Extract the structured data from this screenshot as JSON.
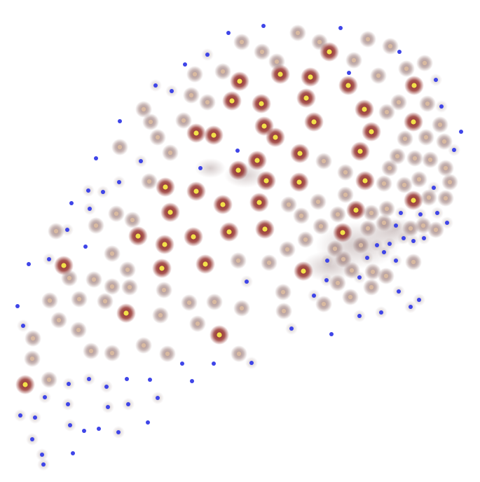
{
  "image": {
    "description_hidden": "",
    "colors": {
      "background": "#ffffff",
      "halo_dark": "#8a1f1a",
      "halo_light": "#9a7a78",
      "center_yellow": "#f2e04a",
      "center_pale": "#d8b9a0",
      "center_blue": "#3f45e8"
    }
  }
}
